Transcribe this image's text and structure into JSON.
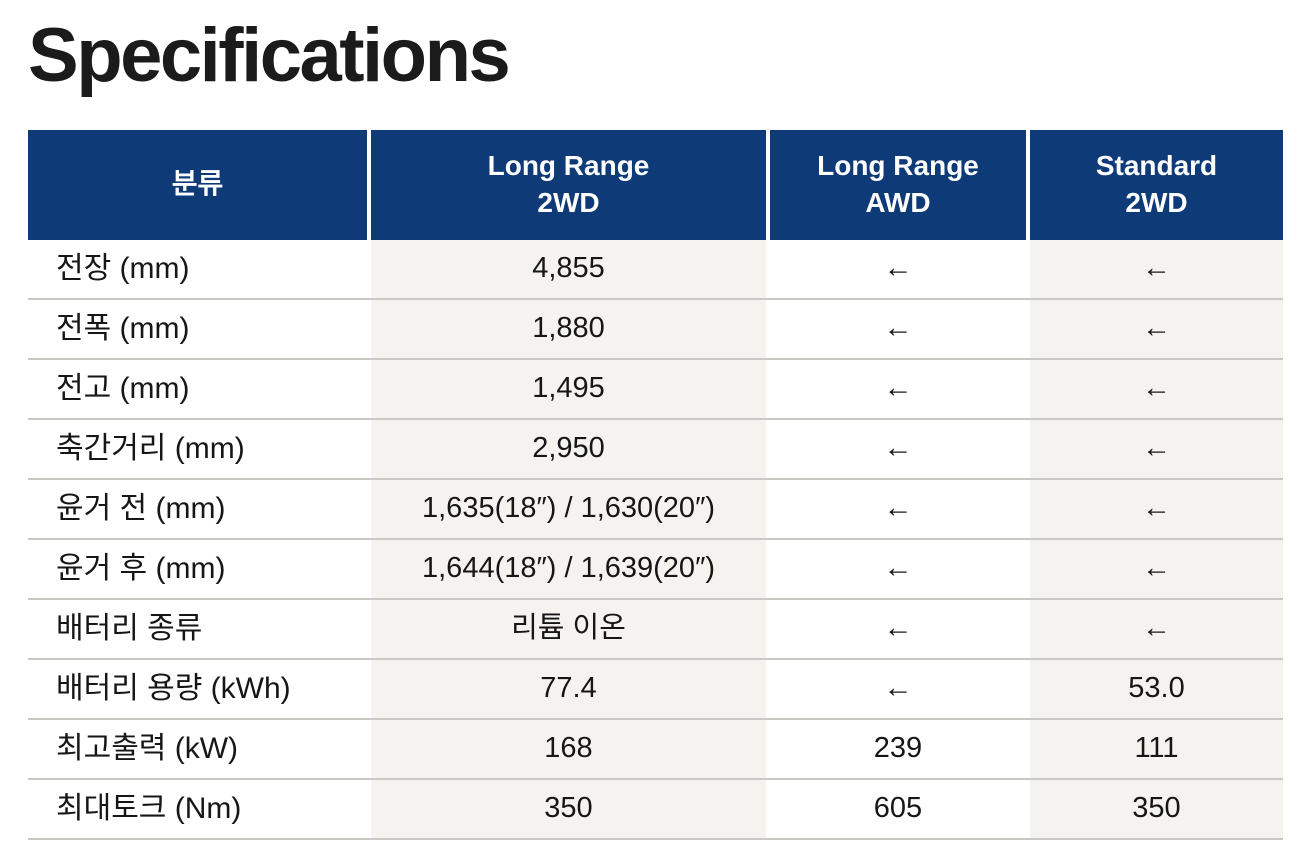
{
  "page": {
    "title": "Specifications"
  },
  "theme": {
    "header_bg": "#0e3a78",
    "header_text": "#ffffff",
    "stripe_bg": "#f4f3f0",
    "row_border": "#cac8c4",
    "text_color": "#161616",
    "page_bg": "#ffffff"
  },
  "table": {
    "columns": [
      {
        "line1": "분류",
        "line2": ""
      },
      {
        "line1": "Long Range",
        "line2": "2WD"
      },
      {
        "line1": "Long Range",
        "line2": "AWD"
      },
      {
        "line1": "Standard",
        "line2": "2WD"
      }
    ],
    "arrow_glyph": "←",
    "rows": [
      {
        "label": "전장 (mm)",
        "values": [
          "4,855",
          "←",
          "←"
        ]
      },
      {
        "label": "전폭 (mm)",
        "values": [
          "1,880",
          "←",
          "←"
        ]
      },
      {
        "label": "전고 (mm)",
        "values": [
          "1,495",
          "←",
          "←"
        ]
      },
      {
        "label": "축간거리 (mm)",
        "values": [
          "2,950",
          "←",
          "←"
        ]
      },
      {
        "label": "윤거 전 (mm)",
        "values": [
          "1,635(18″) / 1,630(20″)",
          "←",
          "←"
        ]
      },
      {
        "label": "윤거 후 (mm)",
        "values": [
          "1,644(18″) / 1,639(20″)",
          "←",
          "←"
        ]
      },
      {
        "label": "배터리 종류",
        "values": [
          "리튬 이온",
          "←",
          "←"
        ]
      },
      {
        "label": "배터리 용량 (kWh)",
        "values": [
          "77.4",
          "←",
          "53.0"
        ]
      },
      {
        "label": "최고출력 (kW)",
        "values": [
          "168",
          "239",
          "111"
        ]
      },
      {
        "label": "최대토크 (Nm)",
        "values": [
          "350",
          "605",
          "350"
        ]
      }
    ]
  }
}
